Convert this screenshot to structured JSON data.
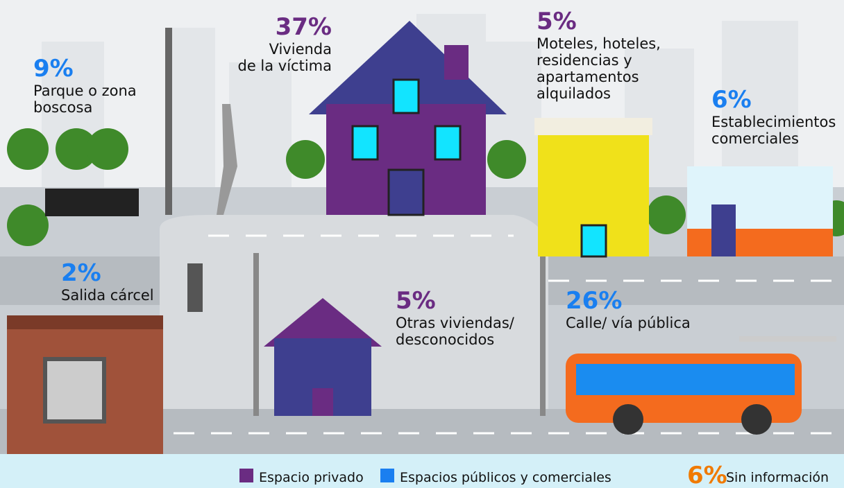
{
  "items": [
    {
      "value": "9%",
      "lines": [
        "Parque o zona",
        "boscosa"
      ],
      "color": "#1a7ff0"
    },
    {
      "value": "37%",
      "lines": [
        "Vivienda",
        "de la víctima"
      ],
      "color": "#6a2c82"
    },
    {
      "value": "5%",
      "lines": [
        "Moteles, hoteles,",
        "residencias y",
        "apartamentos",
        "alquilados"
      ],
      "color": "#6a2c82"
    },
    {
      "value": "6%",
      "lines": [
        "Establecimientos",
        "comerciales"
      ],
      "color": "#1a7ff0"
    },
    {
      "value": "2%",
      "lines": [
        "Salida cárcel"
      ],
      "color": "#1a7ff0"
    },
    {
      "value": "5%",
      "lines": [
        "Otras viviendas/",
        "desconocidos"
      ],
      "color": "#6a2c82"
    },
    {
      "value": "26%",
      "lines": [
        "Calle/ vía pública"
      ],
      "color": "#1a7ff0"
    }
  ],
  "legend": [
    {
      "label": "Espacio privado",
      "color": "#6a2c82"
    },
    {
      "label": "Espacios públicos y comerciales",
      "color": "#1a7ff0"
    }
  ],
  "no_info": {
    "value": "6%",
    "label": "Sin información",
    "color": "#f07a00"
  }
}
